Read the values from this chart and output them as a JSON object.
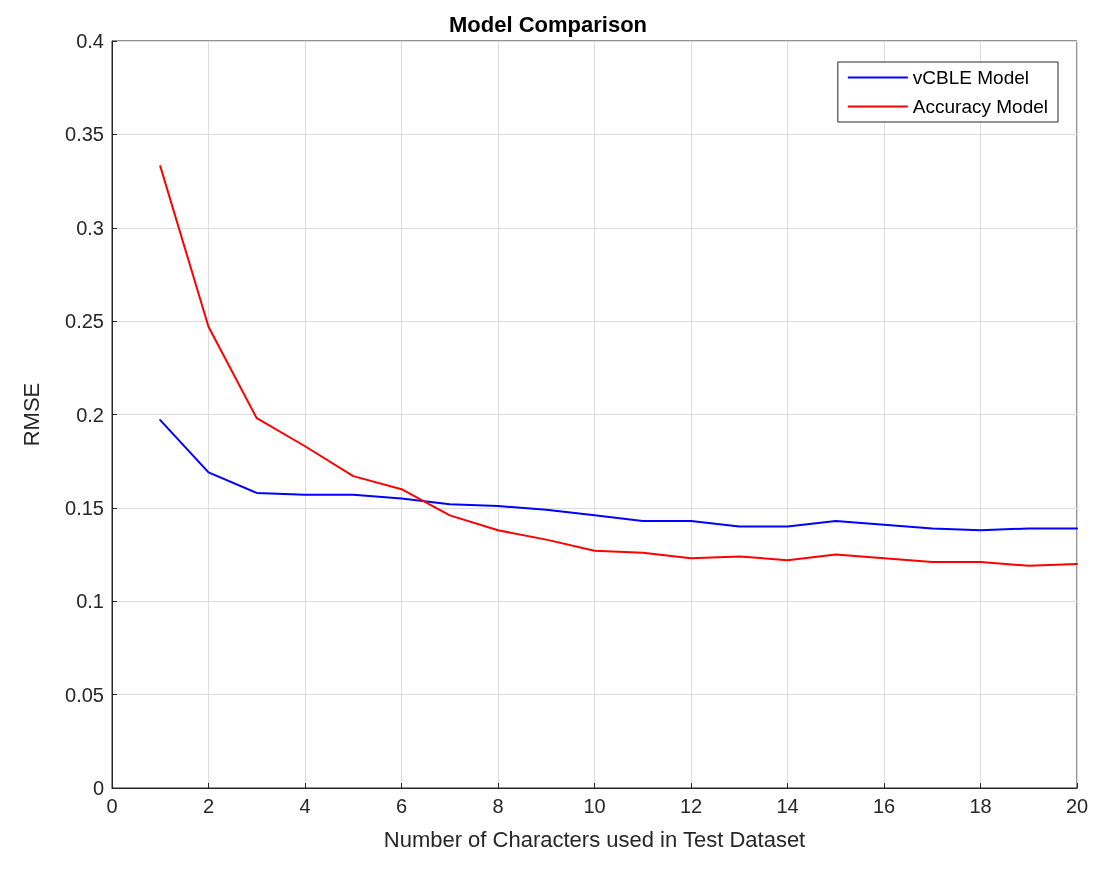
{
  "chart_data": {
    "type": "line",
    "title": "Model Comparison",
    "xlabel": "Number of Characters used in Test Dataset",
    "ylabel": "RMSE",
    "x": [
      1,
      2,
      3,
      4,
      5,
      6,
      7,
      8,
      9,
      10,
      11,
      12,
      13,
      14,
      15,
      16,
      17,
      18,
      19,
      20
    ],
    "series": [
      {
        "name": "vCBLE Model",
        "color": "#0000ff",
        "values": [
          0.197,
          0.169,
          0.158,
          0.157,
          0.157,
          0.155,
          0.152,
          0.151,
          0.149,
          0.146,
          0.143,
          0.143,
          0.14,
          0.14,
          0.143,
          0.141,
          0.139,
          0.138,
          0.139,
          0.139
        ]
      },
      {
        "name": "Accuracy Model",
        "color": "#ff0000",
        "values": [
          0.333,
          0.247,
          0.198,
          0.183,
          0.167,
          0.16,
          0.146,
          0.138,
          0.133,
          0.127,
          0.126,
          0.123,
          0.124,
          0.122,
          0.125,
          0.123,
          0.121,
          0.121,
          0.119,
          0.12
        ]
      }
    ],
    "xlim": [
      0,
      20
    ],
    "xticks": [
      0,
      2,
      4,
      6,
      8,
      10,
      12,
      14,
      16,
      18,
      20
    ],
    "ylim": [
      0,
      0.4
    ],
    "yticks": [
      0,
      0.05,
      0.1,
      0.15,
      0.2,
      0.25,
      0.3,
      0.35,
      0.4
    ],
    "grid": true,
    "legend": "top right",
    "marker": "none",
    "line_style": "solid"
  }
}
